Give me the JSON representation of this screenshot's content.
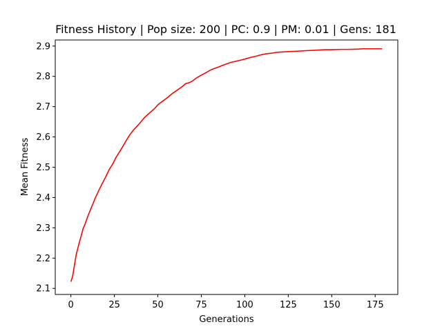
{
  "chart_data": {
    "type": "line",
    "title": "Fitness History | Pop size: 200 | PC: 0.9 | PM: 0.01 | Gens: 181",
    "xlabel": "Generations",
    "ylabel": "Mean Fitness",
    "xlim": [
      -9,
      188
    ],
    "ylim": [
      2.08,
      2.92
    ],
    "xticks": [
      0,
      25,
      50,
      75,
      100,
      125,
      150,
      175
    ],
    "yticks": [
      2.1,
      2.2,
      2.3,
      2.4,
      2.5,
      2.6,
      2.7,
      2.8,
      2.9
    ],
    "ytick_labels": [
      "2.1",
      "2.2",
      "2.3",
      "2.4",
      "2.5",
      "2.6",
      "2.7",
      "2.8",
      "2.9"
    ],
    "grid": false,
    "series": [
      {
        "color": "#ff0000",
        "x": [
          0,
          1,
          2,
          3,
          4,
          5,
          6,
          7,
          8,
          9,
          10,
          12,
          14,
          16,
          18,
          20,
          22,
          24,
          26,
          28,
          30,
          32,
          34,
          36,
          38,
          40,
          42,
          44,
          46,
          48,
          50,
          52,
          54,
          56,
          58,
          60,
          62,
          64,
          66,
          68,
          70,
          72,
          75,
          78,
          80,
          82,
          85,
          88,
          90,
          92,
          95,
          98,
          100,
          103,
          106,
          108,
          110,
          113,
          116,
          118,
          120,
          123,
          126,
          130,
          133,
          136,
          140,
          143,
          146,
          150,
          155,
          160,
          165,
          168,
          172,
          175,
          179
        ],
        "y": [
          2.122,
          2.14,
          2.175,
          2.21,
          2.233,
          2.255,
          2.275,
          2.297,
          2.31,
          2.326,
          2.342,
          2.37,
          2.398,
          2.423,
          2.446,
          2.468,
          2.492,
          2.51,
          2.533,
          2.551,
          2.57,
          2.59,
          2.608,
          2.623,
          2.635,
          2.648,
          2.662,
          2.673,
          2.683,
          2.693,
          2.706,
          2.715,
          2.723,
          2.732,
          2.742,
          2.75,
          2.758,
          2.766,
          2.776,
          2.779,
          2.785,
          2.794,
          2.804,
          2.813,
          2.82,
          2.825,
          2.831,
          2.838,
          2.842,
          2.846,
          2.85,
          2.854,
          2.857,
          2.862,
          2.866,
          2.869,
          2.872,
          2.875,
          2.877,
          2.879,
          2.88,
          2.881,
          2.882,
          2.883,
          2.884,
          2.885,
          2.886,
          2.887,
          2.888,
          2.888,
          2.889,
          2.889,
          2.89,
          2.891,
          2.891,
          2.891,
          2.891
        ]
      }
    ]
  }
}
